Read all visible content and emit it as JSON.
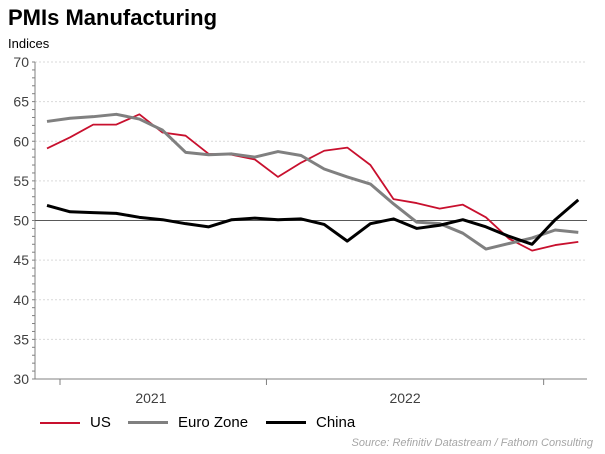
{
  "chart_data": {
    "type": "line",
    "title": "PMIs Manufacturing",
    "ylabel": "Indices",
    "ylim": [
      30,
      70
    ],
    "yticks": [
      30,
      35,
      40,
      45,
      50,
      55,
      60,
      65,
      70
    ],
    "reference_line": 50,
    "grid": "horizontal dotted",
    "x": [
      "2021-03",
      "2021-04",
      "2021-05",
      "2021-06",
      "2021-07",
      "2021-08",
      "2021-09",
      "2021-10",
      "2021-11",
      "2021-12",
      "2022-01",
      "2022-02",
      "2022-03",
      "2022-04",
      "2022-05",
      "2022-06",
      "2022-07",
      "2022-08",
      "2022-09",
      "2022-10",
      "2022-11",
      "2022-12",
      "2023-01",
      "2023-02"
    ],
    "xtick_labels": [
      "2021",
      "2022"
    ],
    "legend_position": "bottom",
    "series": [
      {
        "name": "US",
        "color": "#c8102e",
        "values": [
          59.1,
          60.5,
          62.1,
          62.1,
          63.4,
          61.1,
          60.7,
          58.4,
          58.3,
          57.7,
          55.5,
          57.3,
          58.8,
          59.2,
          57.0,
          52.7,
          52.2,
          51.5,
          52.0,
          50.4,
          47.7,
          46.2,
          46.9,
          47.3
        ]
      },
      {
        "name": "Euro Zone",
        "color": "#808080",
        "values": [
          62.5,
          62.9,
          63.1,
          63.4,
          62.8,
          61.4,
          58.6,
          58.3,
          58.4,
          58.0,
          58.7,
          58.2,
          56.5,
          55.5,
          54.6,
          52.1,
          49.8,
          49.6,
          48.4,
          46.4,
          47.1,
          47.8,
          48.8,
          48.5
        ]
      },
      {
        "name": "China",
        "color": "#000000",
        "values": [
          51.9,
          51.1,
          51.0,
          50.9,
          50.4,
          50.1,
          49.6,
          49.2,
          50.1,
          50.3,
          50.1,
          50.2,
          49.5,
          47.4,
          49.6,
          50.2,
          49.0,
          49.4,
          50.1,
          49.2,
          48.0,
          47.0,
          50.1,
          52.6
        ]
      }
    ],
    "source": "Source: Refinitiv Datastream / Fathom Consulting"
  }
}
